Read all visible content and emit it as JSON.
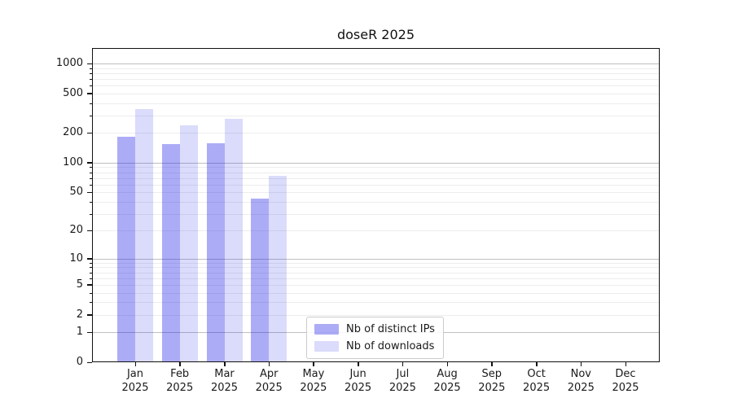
{
  "title": "doseR 2025",
  "chart_data": {
    "type": "bar",
    "title": "doseR 2025",
    "scale": "log1p",
    "grid": true,
    "legend_position": "lower center",
    "categories": [
      "Jan 2025",
      "Feb 2025",
      "Mar 2025",
      "Apr 2025",
      "May 2025",
      "Jun 2025",
      "Jul 2025",
      "Aug 2025",
      "Sep 2025",
      "Oct 2025",
      "Nov 2025",
      "Dec 2025"
    ],
    "series": [
      {
        "name": "Nb of distinct IPs",
        "color": "rgba(25,25,230,0.36)",
        "color_hex": "#acacf6",
        "values": [
          183,
          154,
          156,
          43,
          null,
          null,
          null,
          null,
          null,
          null,
          null,
          null
        ]
      },
      {
        "name": "Nb of downloads",
        "color": "rgba(25,25,230,0.155)",
        "color_hex": "#dbdbfb",
        "values": [
          348,
          238,
          277,
          73,
          null,
          null,
          null,
          null,
          null,
          null,
          null,
          null
        ]
      }
    ],
    "yticks": [
      0,
      1,
      2,
      5,
      10,
      20,
      50,
      100,
      200,
      500,
      1000
    ],
    "ytick_labels": [
      "0",
      "1",
      "2",
      "5",
      "10",
      "20",
      "50",
      "100",
      "200",
      "500",
      "1000"
    ],
    "ylim": [
      0,
      1430
    ],
    "xlabel": "",
    "ylabel": ""
  },
  "colors": {
    "ips_bar": "rgba(25,25,230,0.36)",
    "downloads_bar": "rgba(25,25,230,0.155)",
    "grid_major": "#bfbfbf",
    "grid_minor": "#ededed",
    "axis": "#111111",
    "background": "#ffffff"
  }
}
